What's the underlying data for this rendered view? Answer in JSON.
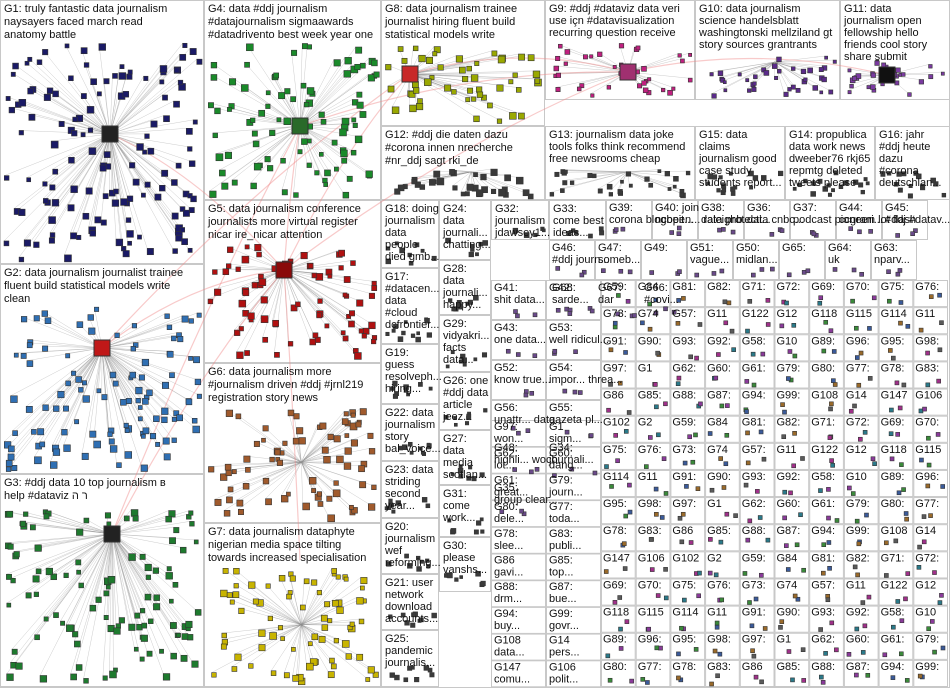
{
  "groups": [
    {
      "id": "G1",
      "lines": [
        "G1: truly fantastic data journalism",
        "naysayers faced march read",
        "anatomy battle"
      ],
      "color": "#1a1a66"
    },
    {
      "id": "G2",
      "lines": [
        "G2: data journalism journalist trainee",
        "fluent build statistical models write",
        "clean"
      ],
      "color": "#2f6fb3"
    },
    {
      "id": "G3",
      "lines": [
        "G3: #ddj data 10 top journalism в",
        "help #dataviz ר ה"
      ],
      "color": "#1e7a2e"
    },
    {
      "id": "G4",
      "lines": [
        "G4: data #ddj journalism",
        "#datajournalism sigmaawards",
        "#datadrivento best week year one"
      ],
      "color": "#1a8a2a"
    },
    {
      "id": "G5",
      "lines": [
        "G5: data journalism conference",
        "journalists more virtual register",
        "nicar ire_nicar attention"
      ],
      "color": "#b01010"
    },
    {
      "id": "G6",
      "lines": [
        "G6: data journalism more",
        "#journalism driven #ddj #jrnl219",
        "registration story news"
      ],
      "color": "#a05a2c"
    },
    {
      "id": "G7",
      "lines": [
        "G7: data journalism dataphyte",
        "nigerian media space tilting",
        "towards increased specialisation"
      ],
      "color": "#c8b400"
    },
    {
      "id": "G8",
      "lines": [
        "G8: data journalism trainee",
        "journalist hiring fluent build",
        "statistical models write"
      ],
      "color": "#9aa800"
    },
    {
      "id": "G9",
      "lines": [
        "G9: #ddj #dataviz data veri",
        "use içn #datavisualization",
        "recurring question receive"
      ],
      "color": "#c02080"
    },
    {
      "id": "G10",
      "lines": [
        "G10: data journalism",
        "science handelsblatt",
        "washingtonski mellziland gt",
        "story sources grantrants"
      ],
      "color": "#5a2a8a"
    },
    {
      "id": "G11",
      "lines": [
        "G11: data",
        "journalism open",
        "fellowship hello",
        "friends cool story",
        "share submit"
      ],
      "color": "#7a3aa0"
    },
    {
      "id": "G12",
      "lines": [
        "G12: #ddj die daten dazu",
        "#corona innen nrecherche",
        "#nr_ddj sagt rki_de"
      ],
      "color": "#3a3a3a"
    },
    {
      "id": "G13",
      "lines": [
        "G13: journalism data joke",
        "tools folks think recommend",
        "free newsrooms cheap"
      ],
      "color": "#3a3a3a"
    },
    {
      "id": "G14",
      "lines": [
        "G14: propublica",
        "data work news",
        "dweeber76 rkj65",
        "repmtg deleted",
        "tweets please"
      ],
      "color": "#3a3a3a"
    },
    {
      "id": "G15",
      "lines": [
        "G15: data",
        "claims",
        "journalism good",
        "case study",
        "students report..."
      ],
      "color": "#3a3a3a"
    },
    {
      "id": "G16",
      "lines": [
        "G16: jahr",
        "#ddj heute",
        "dazu",
        "#corona",
        "deutschlan..."
      ],
      "color": "#3a3a3a"
    },
    {
      "id": "G17",
      "lines": [
        "G17:",
        "#datacen...",
        "data",
        "#cloud",
        "dcfrontier..."
      ],
      "color": "#3a3a3a"
    },
    {
      "id": "G18",
      "lines": [
        "G18: doing",
        "journalism",
        "data",
        "people",
        "died gmb..."
      ],
      "color": "#3a3a3a"
    },
    {
      "id": "G19",
      "lines": [
        "G19:",
        "guess",
        "resolveph...",
        "hiring..."
      ],
      "color": "#3a3a3a"
    },
    {
      "id": "G20",
      "lines": [
        "G20:",
        "journalism",
        "wef",
        "reforming..."
      ],
      "color": "#3a3a3a"
    },
    {
      "id": "G21",
      "lines": [
        "G21: user",
        "network",
        "download",
        "accounts..."
      ],
      "color": "#3a3a3a"
    },
    {
      "id": "G22",
      "lines": [
        "G22: data",
        "journalism",
        "story",
        "bal_voice..."
      ],
      "color": "#3a3a3a"
    },
    {
      "id": "G23",
      "lines": [
        "G23: data",
        "striding",
        "second",
        "year..."
      ],
      "color": "#3a3a3a"
    },
    {
      "id": "G24",
      "lines": [
        "G24:",
        "data",
        "journali...",
        "chatting..."
      ],
      "color": "#3a3a3a"
    },
    {
      "id": "G25",
      "lines": [
        "G25:",
        "pandemic",
        "journalis..."
      ],
      "color": "#3a3a3a"
    },
    {
      "id": "G26",
      "lines": [
        "G26: one",
        "#ddj data",
        "article",
        "jeez..."
      ],
      "color": "#3a3a3a"
    },
    {
      "id": "G27",
      "lines": [
        "G27:",
        "data",
        "media",
        "scotlan..."
      ],
      "color": "#3a3a3a"
    },
    {
      "id": "G28",
      "lines": [
        "G28:",
        "data",
        "journali...",
        "happy..."
      ],
      "color": "#3a3a3a"
    },
    {
      "id": "G29",
      "lines": [
        "G29:",
        "vidyakri...",
        "facts",
        "data..."
      ],
      "color": "#3a3a3a"
    },
    {
      "id": "G30",
      "lines": [
        "G30:",
        "please",
        "vanshs..."
      ],
      "color": "#3a3a3a"
    },
    {
      "id": "G31",
      "lines": [
        "G31:",
        "come",
        "work..."
      ],
      "color": "#3a3a3a"
    },
    {
      "id": "G32",
      "lines": [
        "G32:",
        "journalism",
        "jdawsey1..."
      ],
      "color": "#3a3a3a"
    },
    {
      "id": "G33",
      "lines": [
        "G33:",
        "come best",
        "ideas..."
      ],
      "color": "#3a3a3a"
    }
  ],
  "small_groups": [
    {
      "label": "G39:",
      "sub": "corona blogbeit..."
    },
    {
      "label": "G40: join",
      "sub": "ncopen... raleighb..."
    },
    {
      "label": "G38:",
      "sub": "data protecti..."
    },
    {
      "label": "G36:",
      "sub": "data cnbc..."
    },
    {
      "label": "G37:",
      "sub": "podcast pioneeri..."
    },
    {
      "label": "G44:",
      "sub": "ccgram lot flash"
    },
    {
      "label": "G45:",
      "sub": "#ddj #datav..."
    },
    {
      "label": "G46:",
      "sub": "#ddj journ..."
    },
    {
      "label": "G47:",
      "sub": "someb..."
    },
    {
      "label": "G49:",
      "sub": ""
    },
    {
      "label": "G51:",
      "sub": "vague..."
    },
    {
      "label": "G50:",
      "sub": "midlan..."
    },
    {
      "label": "G65:",
      "sub": ""
    },
    {
      "label": "G64:",
      "sub": "uk"
    },
    {
      "label": "G63:",
      "sub": "nparv..."
    },
    {
      "label": "G68:",
      "sub": "sarde..."
    },
    {
      "label": "G67:",
      "sub": "dar"
    },
    {
      "label": "G66:",
      "sub": "#covi..."
    },
    {
      "label": "G41:",
      "sub": "shit data..."
    },
    {
      "label": "G42:",
      "sub": ""
    },
    {
      "label": "G43:",
      "sub": "one data..."
    },
    {
      "label": "G53:",
      "sub": "well ridicul..."
    },
    {
      "label": "G52:",
      "sub": "know true..."
    },
    {
      "label": "G54:",
      "sub": "impor... threa..."
    },
    {
      "label": "G56:",
      "sub": "unattr... data..."
    },
    {
      "label": "G55:",
      "sub": "gazeta pl..."
    },
    {
      "label": "G48:",
      "sub": "highli... woch..."
    },
    {
      "label": "G34:",
      "sub": "journali..."
    },
    {
      "label": "G35:",
      "sub": "group clear..."
    }
  ],
  "tiny_labels": [
    "G59:",
    "G84",
    "G81:",
    "G82:",
    "G71:",
    "G72:",
    "G69:",
    "G70:",
    "G75:",
    "G76:",
    "G73:",
    "G74",
    "G57:",
    "G11",
    "G122",
    "G12",
    "G118",
    "G115",
    "G114",
    "G11",
    "G91:",
    "G90:",
    "G93:",
    "G92:",
    "G58:",
    "G10",
    "G89:",
    "G96:",
    "G95:",
    "G98:",
    "G97:",
    "G1",
    "G62:",
    "G60:",
    "G61:",
    "G79:",
    "G80:",
    "G77:",
    "G78:",
    "G83:",
    "G86",
    "G85:",
    "G88:",
    "G87:",
    "G94:",
    "G99:",
    "G108",
    "G14",
    "G147",
    "G106",
    "G102",
    "G2"
  ],
  "tiny_words": [
    "won...",
    "sigm...",
    "lot...",
    "dang...",
    "great...",
    "journ...",
    "dele...",
    "toda...",
    "slee...",
    "publi...",
    "gavi...",
    "top...",
    "drm...",
    "bue...",
    "buy...",
    "govr...",
    "data...",
    "pers...",
    "comu...",
    "polit...",
    "thin...",
    "proc...",
    "jeffja...",
    "j_mc...",
    "ctvn...",
    "tuto...",
    "launc...",
    "data...",
    "bull...",
    "appl...",
    "covi...",
    "regu...",
    "last...",
    "don",
    "techi...",
    "foun...",
    "flezio",
    "lezio",
    "soci...",
    "regu...",
    "leri..."
  ],
  "colors": {
    "edge": "#8c8c8c",
    "cross_edge": "#f08a8a",
    "border": "#c8c8c8",
    "background": "#ffffff"
  }
}
